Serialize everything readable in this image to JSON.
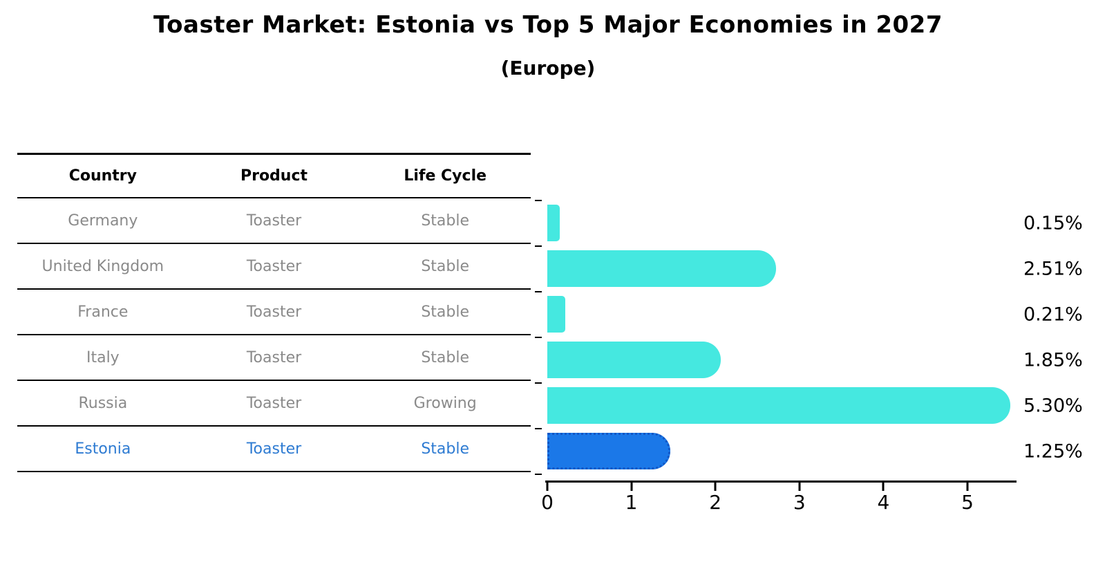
{
  "header": {
    "title": "Toaster Market: Estonia vs Top 5 Major Economies in 2027",
    "subtitle": "(Europe)"
  },
  "table": {
    "headers": [
      "Country",
      "Product",
      "Life Cycle"
    ],
    "rows": [
      {
        "country": "Germany",
        "product": "Toaster",
        "life_cycle": "Stable",
        "highlighted": false
      },
      {
        "country": "United Kingdom",
        "product": "Toaster",
        "life_cycle": "Stable",
        "highlighted": false
      },
      {
        "country": "France",
        "product": "Toaster",
        "life_cycle": "Stable",
        "highlighted": false
      },
      {
        "country": "Italy",
        "product": "Toaster",
        "life_cycle": "Stable",
        "highlighted": false
      },
      {
        "country": "Russia",
        "product": "Toaster",
        "life_cycle": "Growing",
        "highlighted": false
      },
      {
        "country": "Estonia",
        "product": "Toaster",
        "life_cycle": "Stable",
        "highlighted": true
      }
    ]
  },
  "chart_data": {
    "type": "bar",
    "orientation": "horizontal",
    "title": "Toaster Market: Estonia vs Top 5 Major Economies in 2027 (Europe)",
    "categories": [
      "Germany",
      "United Kingdom",
      "France",
      "Italy",
      "Russia",
      "Estonia"
    ],
    "values": [
      0.15,
      2.51,
      0.21,
      1.85,
      5.3,
      1.25
    ],
    "value_labels": [
      "0.15%",
      "2.51%",
      "0.21%",
      "1.85%",
      "5.30%",
      "1.25%"
    ],
    "x_ticks": [
      0,
      1,
      2,
      3,
      4,
      5
    ],
    "xlim": [
      0,
      5.6
    ],
    "grid": false,
    "legend": "none",
    "highlight_index": 5,
    "bar_color": "#45e8e0",
    "highlight_color": "#1b78e8",
    "highlight_border_color": "#1256c4"
  },
  "colors": {
    "table_text_gray": "#8a8a8a",
    "highlight_text_blue": "#2e7bd2",
    "axis_black": "#000000"
  }
}
